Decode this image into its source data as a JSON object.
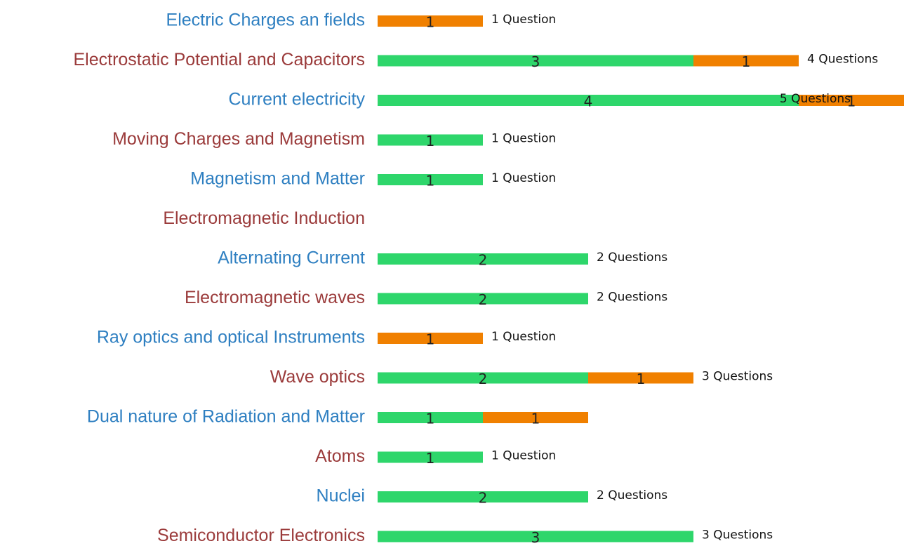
{
  "chart_data": {
    "type": "stacked_barh",
    "categories": [
      "Electric Charges an fields",
      "Electrostatic  Potential and Capacitors",
      "Current electricity",
      "Moving Charges and Magnetism",
      "Magnetism and Matter",
      "Electromagnetic Induction",
      "Alternating Current",
      "Electromagnetic waves",
      "Ray optics and optical Instruments",
      "Wave optics",
      "Dual nature of Radiation and Matter",
      "Atoms",
      "Nuclei",
      "Semiconductor Electronics"
    ],
    "category_colors": [
      "#2e7fc1",
      "#9b3b3b"
    ],
    "series": [
      {
        "color": "#2ed66b",
        "values": [
          null,
          3,
          4,
          1,
          1,
          null,
          2,
          2,
          null,
          2,
          1,
          1,
          2,
          3
        ]
      },
      {
        "color": "#f08000",
        "values": [
          1,
          1,
          1,
          null,
          null,
          null,
          null,
          null,
          1,
          1,
          1,
          null,
          null,
          null
        ]
      }
    ],
    "total_labels": [
      "1 Question",
      "4 Questions",
      "5 Questions",
      "1 Question",
      "1 Question",
      null,
      "2 Questions",
      "2 Questions",
      "1 Question",
      "3 Questions",
      null,
      "1 Question",
      "2 Questions",
      "3 Questions"
    ],
    "xlim": [
      0,
      5
    ]
  }
}
